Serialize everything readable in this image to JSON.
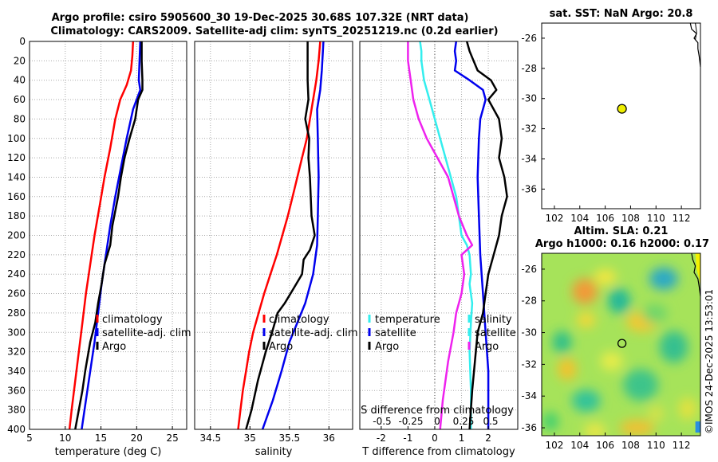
{
  "header": {
    "line1": "Argo profile: csiro 5905600_30 19-Dec-2025 30.68S 107.32E (NRT data)",
    "line2": "Climatology: CARS2009. Satellite-adj clim: synTS_20251219.nc (0.2d earlier)"
  },
  "sst_title": "sat. SST: NaN Argo: 20.8",
  "altim_title_1": "Altim. SLA: 0.21",
  "altim_title_2": "Argo h1000: 0.16 h2000: 0.17",
  "watermark": "©IMOS 24-Dec-2025 13:53:01",
  "colors": {
    "climatology": "#ff0000",
    "satellite": "#0000ee",
    "argo": "#000000",
    "temp_diff": "#33eeee",
    "sal_diff": "#ee22ee",
    "float_marker": "#eeee00"
  },
  "chart_data": [
    {
      "id": "temperature",
      "type": "line",
      "xlabel": "temperature (deg C)",
      "ylabel": "",
      "xlim": [
        5,
        27
      ],
      "ylim": [
        400,
        0
      ],
      "xticks": [
        5,
        10,
        15,
        20,
        25
      ],
      "yticks": [
        0,
        20,
        40,
        60,
        80,
        100,
        120,
        140,
        160,
        180,
        200,
        220,
        240,
        260,
        280,
        300,
        320,
        340,
        360,
        380,
        400
      ],
      "legend": [
        "climatology",
        "satellite-adj. clim",
        "Argo"
      ],
      "series": [
        {
          "name": "climatology",
          "color": "climatology",
          "points": [
            [
              19.5,
              0
            ],
            [
              19.4,
              15
            ],
            [
              19.2,
              30
            ],
            [
              18.6,
              45
            ],
            [
              17.7,
              60
            ],
            [
              17.0,
              80
            ],
            [
              16.3,
              110
            ],
            [
              15.5,
              140
            ],
            [
              14.8,
              170
            ],
            [
              14.1,
              200
            ],
            [
              13.5,
              230
            ],
            [
              12.9,
              260
            ],
            [
              12.4,
              290
            ],
            [
              11.9,
              320
            ],
            [
              11.4,
              350
            ],
            [
              10.9,
              380
            ],
            [
              10.6,
              400
            ]
          ]
        },
        {
          "name": "satellite-adj. clim",
          "color": "satellite",
          "points": [
            [
              20.5,
              0
            ],
            [
              20.4,
              20
            ],
            [
              20.3,
              40
            ],
            [
              20.5,
              50
            ],
            [
              19.5,
              70
            ],
            [
              18.6,
              100
            ],
            [
              17.8,
              130
            ],
            [
              17.0,
              160
            ],
            [
              16.3,
              190
            ],
            [
              15.7,
              220
            ],
            [
              15.1,
              250
            ],
            [
              14.6,
              280
            ],
            [
              14.1,
              310
            ],
            [
              13.5,
              340
            ],
            [
              12.9,
              370
            ],
            [
              12.3,
              400
            ]
          ]
        },
        {
          "name": "Argo",
          "color": "argo",
          "points": [
            [
              20.7,
              0
            ],
            [
              20.7,
              20
            ],
            [
              20.8,
              40
            ],
            [
              20.8,
              50
            ],
            [
              20.2,
              60
            ],
            [
              19.8,
              80
            ],
            [
              19.0,
              100
            ],
            [
              18.3,
              120
            ],
            [
              17.8,
              140
            ],
            [
              17.4,
              160
            ],
            [
              16.6,
              190
            ],
            [
              16.3,
              210
            ],
            [
              15.5,
              230
            ],
            [
              15.1,
              250
            ],
            [
              14.6,
              270
            ],
            [
              14.2,
              290
            ],
            [
              13.5,
              310
            ],
            [
              12.8,
              340
            ],
            [
              12.4,
              360
            ],
            [
              11.9,
              380
            ],
            [
              11.4,
              400
            ]
          ]
        }
      ]
    },
    {
      "id": "salinity",
      "type": "line",
      "xlabel": "salinity",
      "xlim": [
        34.3,
        36.3
      ],
      "ylim": [
        400,
        0
      ],
      "xticks": [
        34.5,
        35,
        35.5,
        36
      ],
      "legend": [
        "climatology",
        "satellite-adj. clim",
        "Argo"
      ],
      "series": [
        {
          "name": "climatology",
          "color": "climatology",
          "points": [
            [
              35.89,
              0
            ],
            [
              35.87,
              20
            ],
            [
              35.84,
              40
            ],
            [
              35.8,
              60
            ],
            [
              35.76,
              80
            ],
            [
              35.72,
              100
            ],
            [
              35.66,
              120
            ],
            [
              35.6,
              140
            ],
            [
              35.54,
              160
            ],
            [
              35.48,
              180
            ],
            [
              35.41,
              200
            ],
            [
              35.34,
              220
            ],
            [
              35.26,
              240
            ],
            [
              35.18,
              260
            ],
            [
              35.11,
              280
            ],
            [
              35.04,
              300
            ],
            [
              34.99,
              320
            ],
            [
              34.95,
              340
            ],
            [
              34.91,
              360
            ],
            [
              34.88,
              380
            ],
            [
              34.85,
              400
            ]
          ]
        },
        {
          "name": "satellite-adj. clim",
          "color": "satellite",
          "points": [
            [
              35.93,
              0
            ],
            [
              35.91,
              30
            ],
            [
              35.89,
              50
            ],
            [
              35.85,
              70
            ],
            [
              35.86,
              100
            ],
            [
              35.87,
              140
            ],
            [
              35.86,
              180
            ],
            [
              35.85,
              210
            ],
            [
              35.8,
              240
            ],
            [
              35.7,
              270
            ],
            [
              35.6,
              290
            ],
            [
              35.5,
              310
            ],
            [
              35.4,
              340
            ],
            [
              35.29,
              370
            ],
            [
              35.16,
              400
            ]
          ]
        },
        {
          "name": "Argo",
          "color": "argo",
          "points": [
            [
              35.73,
              0
            ],
            [
              35.73,
              20
            ],
            [
              35.73,
              40
            ],
            [
              35.74,
              60
            ],
            [
              35.7,
              80
            ],
            [
              35.75,
              100
            ],
            [
              35.74,
              120
            ],
            [
              35.76,
              140
            ],
            [
              35.77,
              160
            ],
            [
              35.78,
              180
            ],
            [
              35.82,
              200
            ],
            [
              35.76,
              215
            ],
            [
              35.68,
              225
            ],
            [
              35.66,
              240
            ],
            [
              35.55,
              255
            ],
            [
              35.44,
              270
            ],
            [
              35.35,
              280
            ],
            [
              35.28,
              300
            ],
            [
              35.2,
              320
            ],
            [
              35.1,
              350
            ],
            [
              35.02,
              380
            ],
            [
              34.95,
              400
            ]
          ]
        }
      ]
    },
    {
      "id": "differences",
      "type": "line",
      "xlabel": "T difference from climatology",
      "secondary_xlabel": "S difference from climatology",
      "xlim": [
        -2.8,
        3.1
      ],
      "ylim": [
        400,
        0
      ],
      "xticks": [
        -2,
        -1,
        0,
        1,
        2
      ],
      "secondary_xticks": [
        "-0.5",
        "-0.25",
        "0",
        "0.25",
        "0.5"
      ],
      "legend_left": [
        "temperature",
        "satellite",
        "Argo"
      ],
      "legend_right": [
        "salinity",
        "satellite",
        "Argo"
      ],
      "series": [
        {
          "name": "temperature satellite",
          "color": "temp_diff",
          "points": [
            [
              -0.55,
              0
            ],
            [
              -0.5,
              10
            ],
            [
              -0.5,
              20
            ],
            [
              -0.4,
              40
            ],
            [
              -0.2,
              60
            ],
            [
              0.0,
              80
            ],
            [
              0.2,
              100
            ],
            [
              0.4,
              120
            ],
            [
              0.6,
              140
            ],
            [
              0.8,
              160
            ],
            [
              0.9,
              180
            ],
            [
              1.0,
              200
            ],
            [
              1.2,
              210
            ],
            [
              1.3,
              220
            ],
            [
              1.35,
              240
            ],
            [
              1.3,
              250
            ],
            [
              1.4,
              270
            ],
            [
              1.35,
              290
            ],
            [
              1.3,
              320
            ],
            [
              1.35,
              360
            ],
            [
              1.35,
              400
            ]
          ]
        },
        {
          "name": "salinity satellite",
          "color": "sal_diff",
          "points": [
            [
              -1.0,
              0
            ],
            [
              -1.0,
              20
            ],
            [
              -0.9,
              40
            ],
            [
              -0.8,
              60
            ],
            [
              -0.6,
              80
            ],
            [
              -0.3,
              100
            ],
            [
              0.1,
              120
            ],
            [
              0.5,
              140
            ],
            [
              0.7,
              160
            ],
            [
              0.9,
              180
            ],
            [
              1.2,
              200
            ],
            [
              1.4,
              210
            ],
            [
              1.0,
              220
            ],
            [
              1.1,
              240
            ],
            [
              1.0,
              260
            ],
            [
              0.8,
              280
            ],
            [
              0.7,
              300
            ],
            [
              0.5,
              330
            ],
            [
              0.3,
              370
            ],
            [
              0.2,
              400
            ]
          ]
        },
        {
          "name": "temperature Argo",
          "color": "satellite",
          "points": [
            [
              0.8,
              0
            ],
            [
              0.75,
              10
            ],
            [
              0.8,
              20
            ],
            [
              0.75,
              30
            ],
            [
              1.3,
              40
            ],
            [
              1.8,
              50
            ],
            [
              1.9,
              60
            ],
            [
              1.7,
              80
            ],
            [
              1.65,
              100
            ],
            [
              1.6,
              140
            ],
            [
              1.65,
              180
            ],
            [
              1.7,
              220
            ],
            [
              1.8,
              260
            ],
            [
              1.9,
              300
            ],
            [
              2.0,
              340
            ],
            [
              2.0,
              400
            ]
          ]
        },
        {
          "name": "salinity Argo",
          "color": "argo",
          "points": [
            [
              1.2,
              0
            ],
            [
              1.3,
              10
            ],
            [
              1.45,
              20
            ],
            [
              1.6,
              30
            ],
            [
              2.1,
              40
            ],
            [
              2.3,
              50
            ],
            [
              2.0,
              60
            ],
            [
              2.4,
              80
            ],
            [
              2.5,
              100
            ],
            [
              2.4,
              120
            ],
            [
              2.6,
              140
            ],
            [
              2.7,
              160
            ],
            [
              2.5,
              180
            ],
            [
              2.4,
              200
            ],
            [
              2.2,
              220
            ],
            [
              2.0,
              240
            ],
            [
              1.9,
              260
            ],
            [
              1.8,
              280
            ],
            [
              1.6,
              300
            ],
            [
              1.5,
              330
            ],
            [
              1.4,
              360
            ],
            [
              1.3,
              400
            ]
          ]
        }
      ]
    },
    {
      "id": "sst_map",
      "type": "scatter",
      "title": "sat. SST: NaN Argo: 20.8",
      "xlim": [
        101,
        113.5
      ],
      "ylim": [
        -37.3,
        -25
      ],
      "xticks": [
        102,
        104,
        106,
        108,
        110,
        112
      ],
      "yticks": [
        -26,
        -28,
        -30,
        -32,
        -34,
        -36
      ],
      "float_position": [
        107.32,
        -30.68
      ]
    },
    {
      "id": "sla_map",
      "type": "heatmap",
      "title": "Altim. SLA: 0.21 / Argo h1000: 0.16 h2000: 0.17",
      "xlim": [
        101,
        113.5
      ],
      "ylim": [
        -36.5,
        -25
      ],
      "xticks": [
        102,
        104,
        106,
        108,
        110,
        112
      ],
      "yticks": [
        -26,
        -28,
        -30,
        -32,
        -34,
        -36
      ],
      "float_position": [
        107.32,
        -30.68
      ]
    }
  ]
}
